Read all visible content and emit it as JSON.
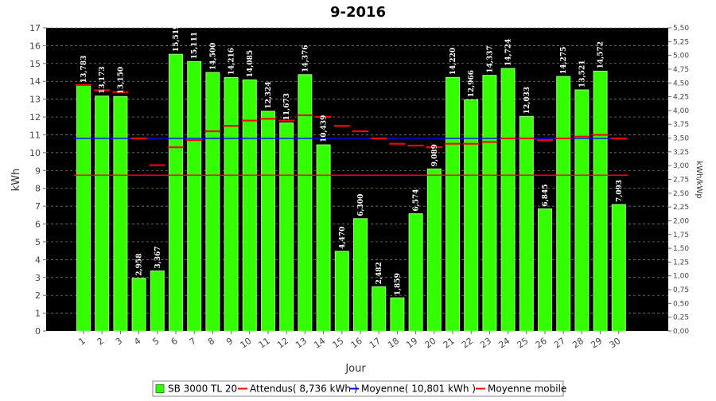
{
  "chart_data": {
    "type": "bar",
    "title": "9-2016",
    "xlabel": "Jour",
    "ylabel": "kWh",
    "y2label": "kWh/kWp",
    "ylim": [
      0,
      17
    ],
    "y2lim": [
      0,
      5.5
    ],
    "yticks": [
      "0",
      "1",
      "2",
      "3",
      "4",
      "5",
      "6",
      "7",
      "8",
      "9",
      "10",
      "11",
      "12",
      "13",
      "14",
      "15",
      "16",
      "17"
    ],
    "y2ticks": [
      "0,00",
      "0,25",
      "0,50",
      "0,75",
      "1,00",
      "1,25",
      "1,50",
      "1,75",
      "2,00",
      "2,25",
      "2,50",
      "2,75",
      "3,00",
      "3,25",
      "3,50",
      "3,75",
      "4,00",
      "4,25",
      "4,50",
      "4,75",
      "5,00",
      "5,25",
      "5,50"
    ],
    "categories": [
      "1",
      "2",
      "3",
      "4",
      "5",
      "6",
      "7",
      "8",
      "9",
      "10",
      "11",
      "12",
      "13",
      "14",
      "15",
      "16",
      "17",
      "18",
      "19",
      "20",
      "21",
      "22",
      "23",
      "24",
      "25",
      "26",
      "27",
      "28",
      "29",
      "30"
    ],
    "series": [
      {
        "name": "SB 3000 TL 20",
        "color": "#33ff00",
        "values": [
          13.783,
          13.173,
          13.15,
          2.958,
          3.367,
          15.519,
          15.111,
          14.5,
          14.216,
          14.085,
          12.324,
          11.673,
          14.376,
          10.439,
          4.47,
          6.3,
          2.482,
          1.859,
          6.574,
          9.089,
          14.22,
          12.966,
          14.337,
          14.724,
          12.033,
          6.845,
          14.275,
          13.521,
          14.572,
          7.093
        ],
        "labels": [
          "13,783",
          "13,173",
          "13,150",
          "2,958",
          "3,367",
          "15,519",
          "15,111",
          "14,500",
          "14,216",
          "14,085",
          "12,324",
          "11,673",
          "14,376",
          "10,439",
          "4,470",
          "6,300",
          "2,482",
          "1,859",
          "6,574",
          "9,089",
          "14,220",
          "12,966",
          "14,337",
          "14,724",
          "12,033",
          "6,845",
          "14,275",
          "13,521",
          "14,572",
          "7,093"
        ]
      },
      {
        "name": "Attendus( 8,736 kWh )",
        "color": "#ff0000",
        "value": 8.736
      },
      {
        "name": "Moyenne( 10,801 kWh )",
        "color": "#0000ff",
        "value": 10.801
      },
      {
        "name": "Moyenne mobile",
        "color": "#ff0000",
        "values": [
          13.8,
          13.5,
          13.4,
          10.8,
          9.3,
          10.3,
          10.7,
          11.2,
          11.5,
          11.8,
          11.9,
          11.8,
          12.1,
          12.0,
          11.5,
          11.2,
          10.8,
          10.5,
          10.4,
          10.3,
          10.5,
          10.5,
          10.6,
          10.8,
          10.8,
          10.7,
          10.8,
          10.9,
          11.0,
          10.8
        ]
      }
    ],
    "legend_position": "bottom",
    "plot_background": "#000000",
    "grid": true
  }
}
